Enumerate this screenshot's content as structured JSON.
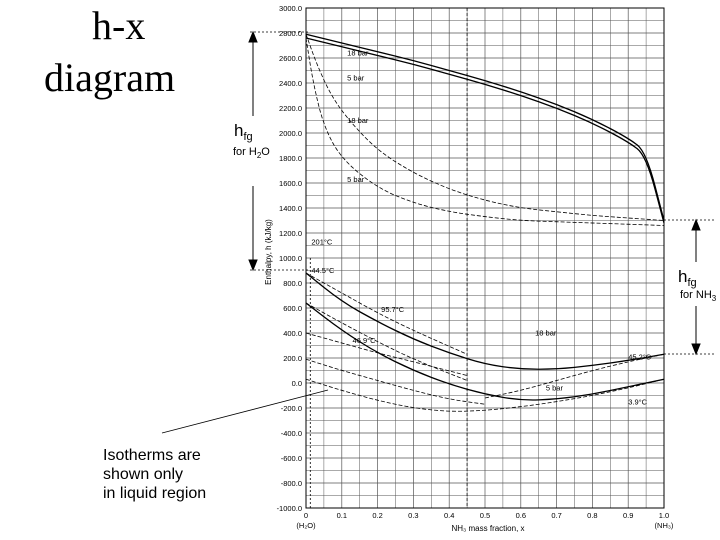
{
  "title": {
    "line1": "h-x",
    "line2": "diagram"
  },
  "annotations": {
    "hfg_h2o": {
      "main": "h",
      "sub": "fg",
      "note_prefix": "for H",
      "note_sub": "2",
      "note_suffix": "O"
    },
    "hfg_nh3": {
      "main": "h",
      "sub": "fg",
      "note_prefix": "for NH",
      "note_sub": "3"
    },
    "isotherm_note": [
      "Isotherms are",
      "shown only",
      "in liquid region"
    ]
  },
  "chart_data": {
    "type": "line",
    "ylabel": "Enthalpy, h (kJ/kg)",
    "xlabel": "NH₃ mass fraction, x",
    "x_ticks": [
      "0",
      "0.1",
      "0.2",
      "0.3",
      "0.4",
      "0.5",
      "0.6",
      "0.7",
      "0.8",
      "0.9",
      "1.0"
    ],
    "x_end_labels": [
      "(H₂O)",
      "(NH₃)"
    ],
    "y_ticks": [
      3000.0,
      2800.0,
      2600.0,
      2400.0,
      2200.0,
      2000.0,
      1800.0,
      1600.0,
      1400.0,
      1200.0,
      1000.0,
      800.0,
      600.0,
      400.0,
      200.0,
      0.0,
      -200.0,
      -400.0,
      -600.0,
      -800.0,
      -1000.0
    ],
    "y_tick_labels": [
      "3000.0",
      "2800.0",
      "2600.0",
      "2400.0",
      "2200.0",
      "2000.0",
      "1800.0",
      "1600.0",
      "1400.0",
      "1200.0",
      "1000.0",
      "800.0",
      "600.0",
      "400.0",
      "200.0",
      "0.0",
      "-200.0",
      "-400.0",
      "-600.0",
      "-800.0",
      "-1000.0"
    ],
    "xlim": [
      0,
      1
    ],
    "ylim": [
      -1000,
      3000
    ],
    "grid": true,
    "reference_x": 0.45,
    "series": [
      {
        "name": "18 bar",
        "style": "solid",
        "x": [
          0,
          0.1,
          0.2,
          0.3,
          0.4,
          0.5,
          0.6,
          0.7,
          0.8,
          0.9,
          0.95,
          1.0
        ],
        "y": [
          2790,
          2720,
          2650,
          2580,
          2500,
          2420,
          2330,
          2230,
          2110,
          1960,
          1850,
          1300
        ]
      },
      {
        "name": "5 bar",
        "style": "solid",
        "x": [
          0,
          0.1,
          0.2,
          0.3,
          0.4,
          0.5,
          0.6,
          0.7,
          0.8,
          0.9,
          0.95,
          1.0
        ],
        "y": [
          2760,
          2690,
          2620,
          2550,
          2470,
          2390,
          2300,
          2200,
          2080,
          1930,
          1820,
          1280
        ]
      },
      {
        "name": "18 bar",
        "style": "dashed",
        "x": [
          0,
          0.03,
          0.07,
          0.12,
          0.2,
          0.3,
          0.4,
          0.5,
          0.6,
          0.7,
          0.8,
          0.9,
          1.0
        ],
        "y": [
          2790,
          2550,
          2300,
          2100,
          1860,
          1680,
          1550,
          1460,
          1400,
          1370,
          1340,
          1320,
          1300
        ]
      },
      {
        "name": "5 bar",
        "style": "dashed",
        "x": [
          0,
          0.02,
          0.05,
          0.1,
          0.2,
          0.3,
          0.4,
          0.5,
          0.6,
          0.7,
          0.8,
          0.9,
          1.0
        ],
        "y": [
          2760,
          2400,
          2050,
          1790,
          1560,
          1440,
          1370,
          1330,
          1300,
          1290,
          1280,
          1270,
          1260
        ]
      },
      {
        "name": "18 bar",
        "style": "solid",
        "x": [
          0,
          0.1,
          0.2,
          0.3,
          0.4,
          0.5,
          0.6,
          0.7,
          0.8,
          0.9,
          1.0
        ],
        "y": [
          880,
          650,
          490,
          350,
          240,
          150,
          110,
          110,
          140,
          180,
          230
        ]
      },
      {
        "name": "5 bar",
        "style": "solid",
        "x": [
          0,
          0.1,
          0.2,
          0.3,
          0.4,
          0.5,
          0.6,
          0.7,
          0.8,
          0.9,
          1.0
        ],
        "y": [
          640,
          420,
          240,
          100,
          -10,
          -90,
          -140,
          -130,
          -90,
          -30,
          30
        ]
      },
      {
        "name": "201°C",
        "style": "dashed",
        "x": [
          0,
          0.1,
          0.2,
          0.3,
          0.45
        ],
        "y": [
          880,
          720,
          560,
          420,
          230
        ]
      },
      {
        "name": "44.5°C",
        "style": "dashed",
        "x": [
          0,
          0.1,
          0.2,
          0.3,
          0.45
        ],
        "y": [
          640,
          480,
          330,
          190,
          20
        ]
      },
      {
        "name": "95.7°C",
        "style": "dashed",
        "x": [
          0,
          0.1,
          0.2,
          0.3,
          0.45
        ],
        "y": [
          400,
          320,
          240,
          170,
          60
        ]
      },
      {
        "name": "46.9°C",
        "style": "dashed",
        "x": [
          0,
          0.1,
          0.2,
          0.3,
          0.4,
          0.5
        ],
        "y": [
          190,
          100,
          20,
          -60,
          -130,
          -170
        ]
      },
      {
        "name": "45.2°C",
        "style": "dashed",
        "x": [
          0.5,
          0.6,
          0.7,
          0.8,
          0.9,
          1.0
        ],
        "y": [
          -120,
          -60,
          20,
          100,
          170,
          230
        ]
      },
      {
        "name": "3.9°C",
        "style": "dashed",
        "x": [
          0,
          0.1,
          0.2,
          0.3,
          0.4,
          0.5,
          0.6,
          0.7,
          0.8,
          0.9,
          1.0
        ],
        "y": [
          30,
          -60,
          -140,
          -200,
          -230,
          -220,
          -190,
          -150,
          -100,
          -40,
          30
        ]
      }
    ],
    "curve_labels": [
      {
        "text": "18 bar",
        "x": 0.115,
        "y": 2620
      },
      {
        "text": "5 bar",
        "x": 0.115,
        "y": 2420
      },
      {
        "text": "18 bar",
        "x": 0.115,
        "y": 2080
      },
      {
        "text": "5 bar",
        "x": 0.115,
        "y": 1610
      },
      {
        "text": "201°C",
        "x": 0.015,
        "y": 1110
      },
      {
        "text": "44.5°C",
        "x": 0.015,
        "y": 880
      },
      {
        "text": "95.7°C",
        "x": 0.21,
        "y": 570
      },
      {
        "text": "46.9°C",
        "x": 0.13,
        "y": 320
      },
      {
        "text": "18 bar",
        "x": 0.64,
        "y": 380
      },
      {
        "text": "45.2°C",
        "x": 0.9,
        "y": 190
      },
      {
        "text": "5 bar",
        "x": 0.67,
        "y": -60
      },
      {
        "text": "3.9°C",
        "x": 0.9,
        "y": -170
      }
    ]
  }
}
